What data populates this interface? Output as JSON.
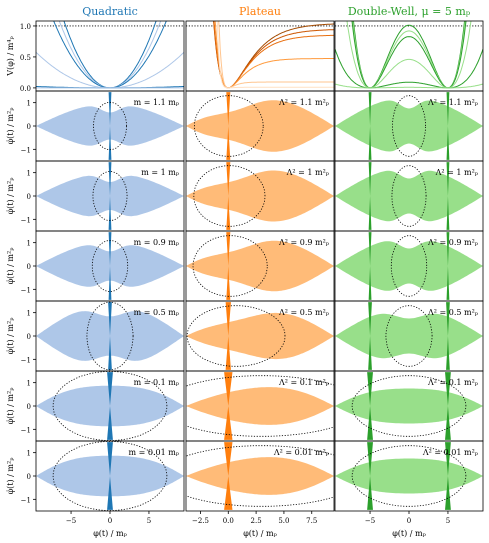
{
  "colors": {
    "quadratic": "#1f77b4",
    "quadratic_light": "#aec7e8",
    "plateau": "#ff7f0e",
    "plateau_light": "#ffbb78",
    "doublewell": "#2ca02c",
    "doublewell_light": "#98df8a",
    "boundary": "#000000"
  },
  "chart_data": {
    "type": "scatter",
    "grid": false,
    "legend": "none",
    "columns": [
      {
        "key": "quadratic",
        "title": "Quadratic",
        "xlim": [
          -9.5,
          9.5
        ],
        "xticks": [
          -5,
          0,
          5
        ],
        "xticklabels": [
          "−5",
          "0",
          "5"
        ],
        "mass_param": "m",
        "panel_labels": [
          "m = 1.1 mₚ",
          "m = 1 mₚ",
          "m = 0.9 mₚ",
          "m = 0.5 mₚ",
          "m = 0.1 mₚ",
          "m = 0.01 mₚ"
        ]
      },
      {
        "key": "plateau",
        "title": "Plateau",
        "xlim": [
          -3.8,
          9.5
        ],
        "xticks": [
          -2.5,
          0,
          2.5,
          5,
          7.5
        ],
        "xticklabels": [
          "−2.5",
          "0.0",
          "2.5",
          "5.0",
          "7.5"
        ],
        "mass_param": "Λ²",
        "panel_labels": [
          "Λ² = 1.1 m²ₚ",
          "Λ² = 1 m²ₚ",
          "Λ² = 0.9 m²ₚ",
          "Λ² = 0.5 m²ₚ",
          "Λ² = 0.1 m²ₚ",
          "Λ² = 0.01 m²ₚ"
        ]
      },
      {
        "key": "doublewell",
        "title": "Double-Well, μ = 5 mₚ",
        "xlim": [
          -9.5,
          9.5
        ],
        "xticks": [
          -5,
          0,
          5
        ],
        "xticklabels": [
          "−5",
          "0",
          "5"
        ],
        "mass_param": "Λ²",
        "panel_labels": [
          "Λ² = 1.1 m²ₚ",
          "Λ² = 1 m²ₚ",
          "Λ² = 0.9 m²ₚ",
          "Λ² = 0.5 m²ₚ",
          "Λ² = 0.1 m²ₚ",
          "Λ² = 0.01 m²ₚ"
        ]
      }
    ],
    "mass_values": [
      1.1,
      1,
      0.9,
      0.5,
      0.1,
      0.01
    ],
    "potential_row": {
      "ylabel": "V(φ) / m⁴ₚ",
      "ylim": [
        -0.05,
        1.08
      ],
      "yticks": [
        0.0,
        0.5,
        1.0
      ],
      "yticklabels": [
        "0.0",
        "0.5",
        "1.0"
      ],
      "dotted_level": 1.0
    },
    "phase_rows": {
      "ylabel": "φ̇(t) / m²ₚ",
      "ylim": [
        -1.5,
        1.5
      ],
      "yticks": [
        -1,
        0,
        1
      ],
      "yticklabels": [
        "−1",
        "0",
        "1"
      ],
      "xlabel": "φ(t) / mₚ"
    }
  }
}
